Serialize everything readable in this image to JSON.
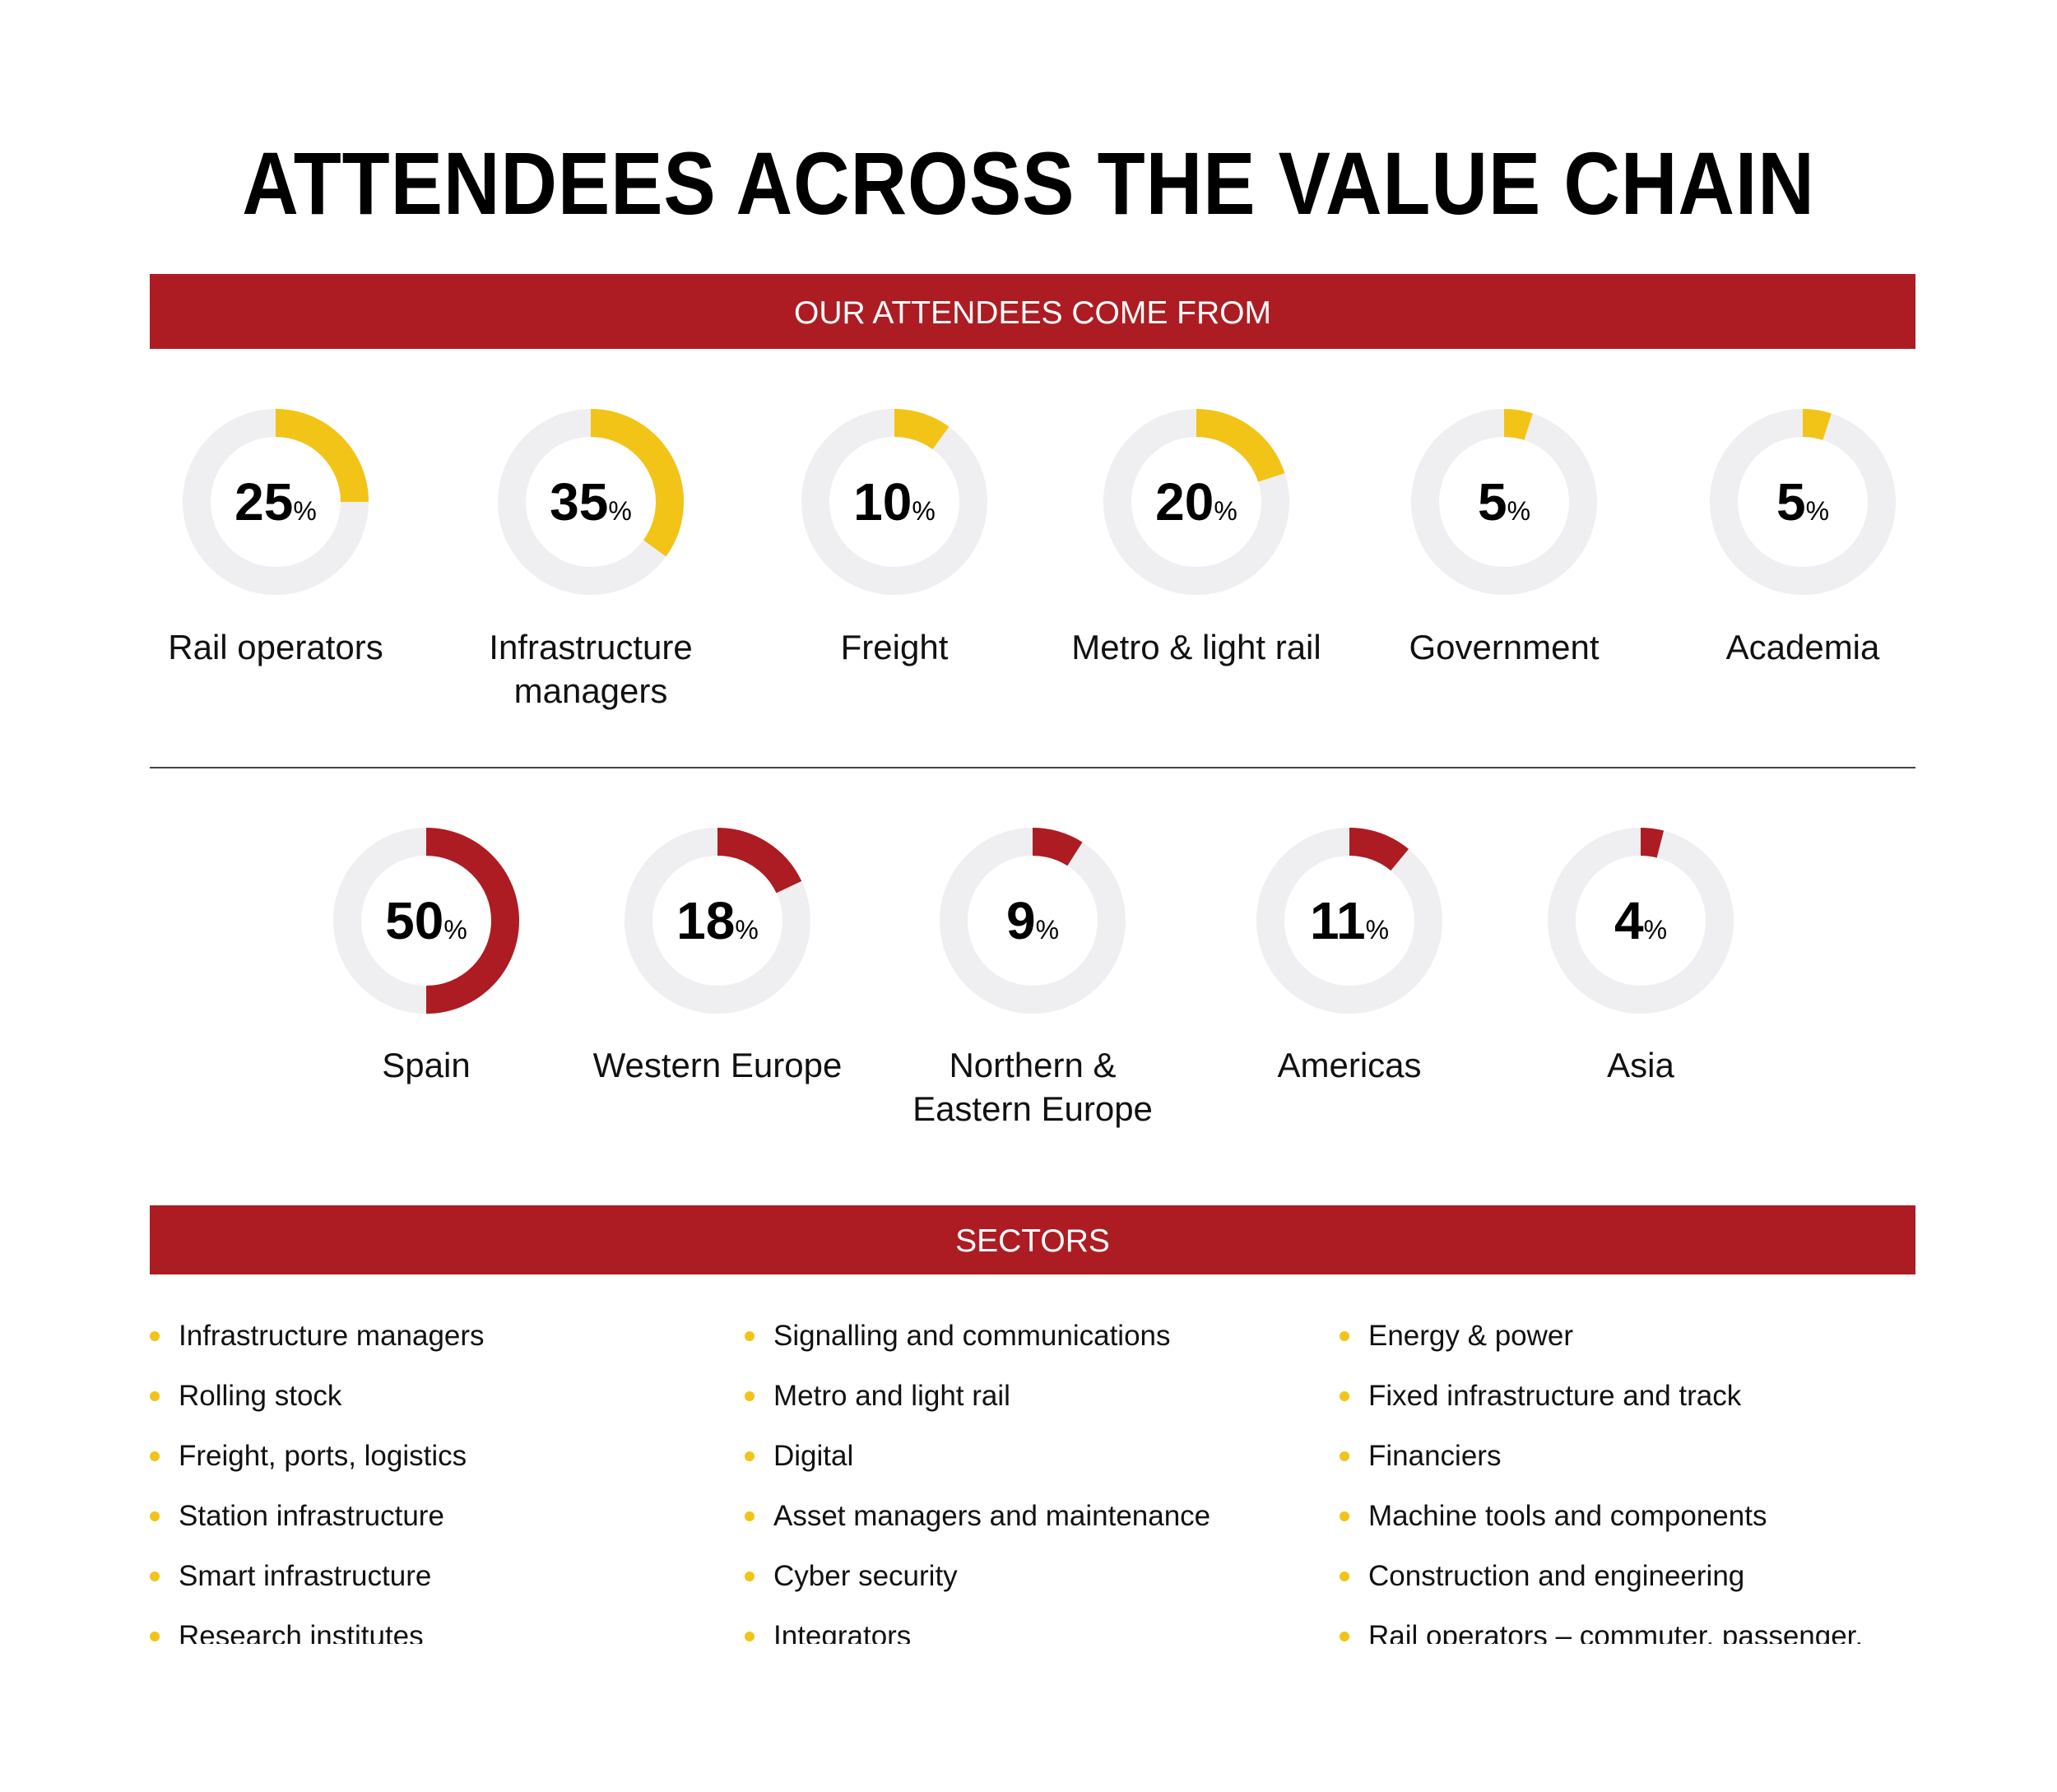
{
  "title": "ATTENDEES ACROSS THE VALUE CHAIN",
  "banner_top": "OUR ATTENDEES COME FROM",
  "banner_sectors": "SECTORS",
  "colors": {
    "accent_red": "#ad1c22",
    "accent_yellow": "#f2c418",
    "track_gray": "#efeff1"
  },
  "chart_data": [
    {
      "type": "pie",
      "donut": true,
      "percent_suffix": "%",
      "categories": [
        "Rail operators",
        "Infrastructure managers",
        "Freight",
        "Metro & light rail",
        "Government",
        "Academia"
      ],
      "values": [
        25,
        35,
        10,
        20,
        5,
        5
      ],
      "color": "#f2c418"
    },
    {
      "type": "pie",
      "donut": true,
      "percent_suffix": "%",
      "categories": [
        "Spain",
        "Western Europe",
        "Northern & Eastern Europe",
        "Americas",
        "Asia"
      ],
      "values": [
        50,
        18,
        9,
        11,
        4
      ],
      "color": "#ad1c22"
    }
  ],
  "sectors": [
    [
      "Infrastructure managers",
      "Rolling stock",
      "Freight, ports, logistics",
      "Station infrastructure",
      "Smart infrastructure",
      "Research institutes"
    ],
    [
      "Signalling and communications",
      "Metro and light rail",
      "Digital",
      "Asset managers and maintenance",
      "Cyber security",
      "Integrators"
    ],
    [
      "Energy & power",
      "Fixed infrastructure and track",
      "Financiers",
      "Machine tools and components",
      "Construction and engineering",
      "Rail operators – commuter, passenger,"
    ]
  ]
}
